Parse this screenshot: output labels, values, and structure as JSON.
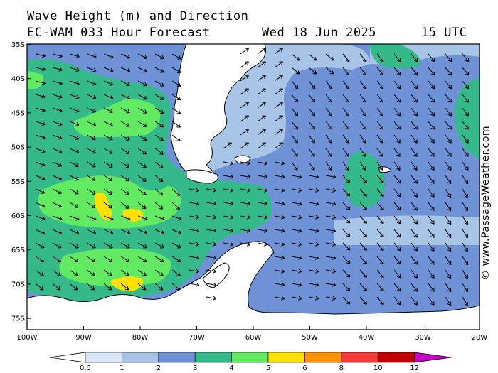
{
  "header": {
    "title": "Wave Height (m) and Direction",
    "model": "EC-WAM 033 Hour Forecast",
    "date": "Wed 18 Jun 2025",
    "time": "15 UTC"
  },
  "credit": "© www.PassageWeather.com",
  "map": {
    "lat_labels": [
      "35S",
      "40S",
      "45S",
      "50S",
      "55S",
      "60S",
      "65S",
      "70S",
      "75S"
    ],
    "lon_labels": [
      "100W",
      "90W",
      "80W",
      "70W",
      "60W",
      "50W",
      "40W",
      "30W",
      "20W"
    ],
    "ocean_color": "#b3c9e8",
    "land_color": "#ffffff",
    "coastline_color": "#000000"
  },
  "legend": {
    "ticks": [
      "0.5",
      "1",
      "2",
      "3",
      "4",
      "5",
      "6",
      "8",
      "10",
      "12"
    ],
    "colors": [
      "#d8e6f7",
      "#a8c4e6",
      "#6f92d6",
      "#34b98a",
      "#63ea63",
      "#ffe100",
      "#ff9300",
      "#f43a3a",
      "#c20000",
      "#c800c8"
    ]
  },
  "arrows": "wave-direction-arrows"
}
